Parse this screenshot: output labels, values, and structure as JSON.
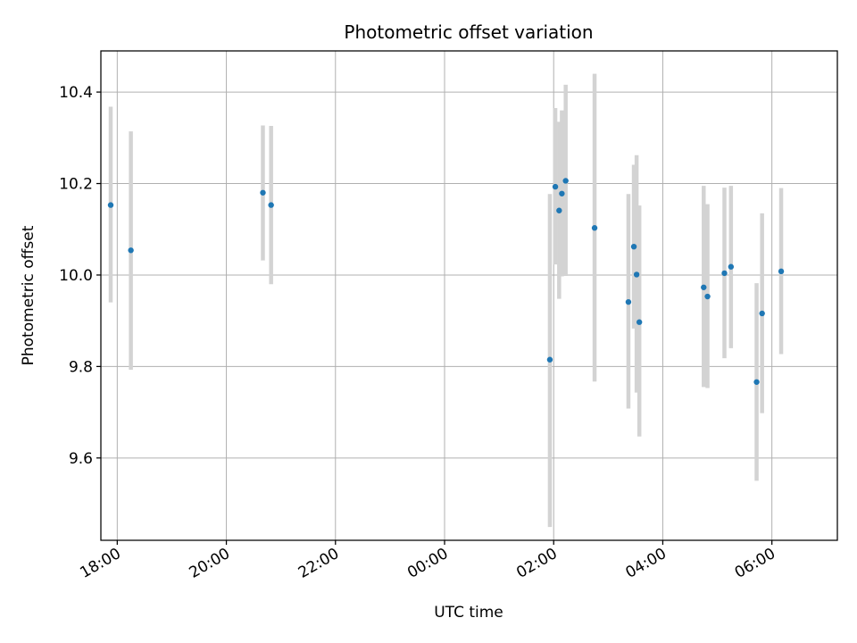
{
  "chart_data": {
    "type": "scatter",
    "title": "Photometric offset variation",
    "xlabel": "UTC time",
    "ylabel": "Photometric offset",
    "x_unit": "hours",
    "xlim": [
      -6.3,
      7.2
    ],
    "ylim": [
      9.42,
      10.49
    ],
    "grid": true,
    "x_ticks": [
      -6,
      -4,
      -2,
      0,
      2,
      4,
      6
    ],
    "x_tick_labels": [
      "18:00",
      "20:00",
      "22:00",
      "00:00",
      "02:00",
      "04:00",
      "06:00"
    ],
    "y_ticks": [
      9.6,
      9.8,
      10.0,
      10.2,
      10.4
    ],
    "y_tick_labels": [
      "9.6",
      "9.8",
      "10.0",
      "10.2",
      "10.4"
    ],
    "marker_color": "#1f77b4",
    "errorbar_color": "#d3d3d3",
    "points": [
      {
        "x": -6.12,
        "y": 10.153,
        "yerr_low": 9.94,
        "yerr_high": 10.368
      },
      {
        "x": -5.75,
        "y": 10.054,
        "yerr_low": 9.793,
        "yerr_high": 10.314
      },
      {
        "x": -3.33,
        "y": 10.18,
        "yerr_low": 10.032,
        "yerr_high": 10.327
      },
      {
        "x": -3.18,
        "y": 10.153,
        "yerr_low": 9.98,
        "yerr_high": 10.326
      },
      {
        "x": 1.93,
        "y": 9.815,
        "yerr_low": 9.449,
        "yerr_high": 10.177
      },
      {
        "x": 2.03,
        "y": 10.193,
        "yerr_low": 10.023,
        "yerr_high": 10.365
      },
      {
        "x": 2.1,
        "y": 10.141,
        "yerr_low": 9.948,
        "yerr_high": 10.335
      },
      {
        "x": 2.15,
        "y": 10.178,
        "yerr_low": 9.997,
        "yerr_high": 10.36
      },
      {
        "x": 2.22,
        "y": 10.206,
        "yerr_low": 9.998,
        "yerr_high": 10.416
      },
      {
        "x": 2.75,
        "y": 10.103,
        "yerr_low": 9.767,
        "yerr_high": 10.44
      },
      {
        "x": 3.37,
        "y": 9.941,
        "yerr_low": 9.708,
        "yerr_high": 10.177
      },
      {
        "x": 3.47,
        "y": 10.062,
        "yerr_low": 9.883,
        "yerr_high": 10.241
      },
      {
        "x": 3.52,
        "y": 10.001,
        "yerr_low": 9.743,
        "yerr_high": 10.262
      },
      {
        "x": 3.57,
        "y": 9.897,
        "yerr_low": 9.647,
        "yerr_high": 10.152
      },
      {
        "x": 4.75,
        "y": 9.973,
        "yerr_low": 9.755,
        "yerr_high": 10.195
      },
      {
        "x": 4.82,
        "y": 9.953,
        "yerr_low": 9.753,
        "yerr_high": 10.155
      },
      {
        "x": 5.13,
        "y": 10.004,
        "yerr_low": 9.818,
        "yerr_high": 10.191
      },
      {
        "x": 5.25,
        "y": 10.018,
        "yerr_low": 9.84,
        "yerr_high": 10.195
      },
      {
        "x": 5.72,
        "y": 9.766,
        "yerr_low": 9.55,
        "yerr_high": 9.982
      },
      {
        "x": 5.82,
        "y": 9.916,
        "yerr_low": 9.698,
        "yerr_high": 10.135
      },
      {
        "x": 6.17,
        "y": 10.008,
        "yerr_low": 9.827,
        "yerr_high": 10.19
      }
    ]
  }
}
